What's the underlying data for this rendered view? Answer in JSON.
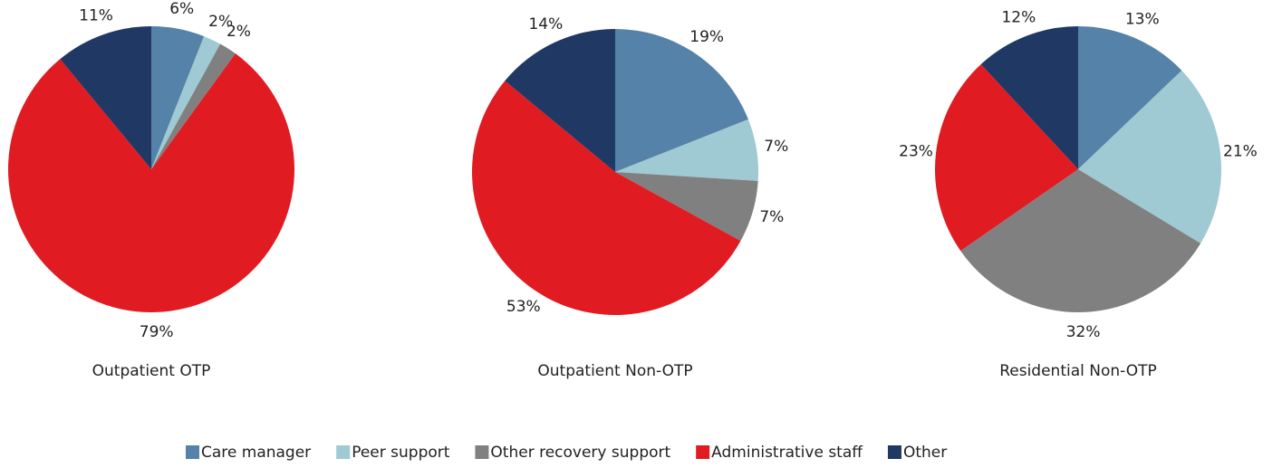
{
  "chart_data": [
    {
      "type": "pie",
      "title": "Outpatient OTP",
      "categories": [
        "Care manager",
        "Peer support",
        "Other recovery support",
        "Administrative staff",
        "Other"
      ],
      "values": [
        6,
        2,
        2,
        79,
        11
      ],
      "value_labels": [
        "6%",
        "2%",
        "2%",
        "79%",
        "11%"
      ],
      "colors": [
        "#5582a8",
        "#9fc9d3",
        "#808080",
        "#e01b22",
        "#203864"
      ]
    },
    {
      "type": "pie",
      "title": "Outpatient Non-OTP",
      "categories": [
        "Care manager",
        "Peer support",
        "Other recovery support",
        "Administrative staff",
        "Other"
      ],
      "values": [
        19,
        7,
        7,
        53,
        14
      ],
      "value_labels": [
        "19%",
        "7%",
        "7%",
        "53%",
        "14%"
      ],
      "colors": [
        "#5582a8",
        "#9fc9d3",
        "#808080",
        "#e01b22",
        "#203864"
      ]
    },
    {
      "type": "pie",
      "title": "Residential Non-OTP",
      "categories": [
        "Care manager",
        "Peer support",
        "Other recovery support",
        "Administrative staff",
        "Other"
      ],
      "values": [
        13,
        21,
        32,
        23,
        12
      ],
      "value_labels": [
        "13%",
        "21%",
        "32%",
        "23%",
        "12%"
      ],
      "colors": [
        "#5582a8",
        "#9fc9d3",
        "#808080",
        "#e01b22",
        "#203864"
      ]
    }
  ]
}
